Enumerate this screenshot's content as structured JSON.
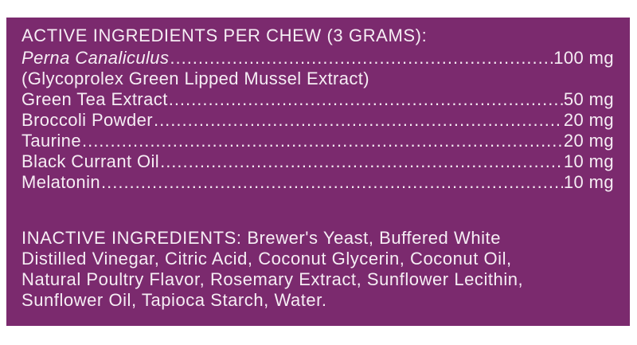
{
  "active": {
    "title": "ACTIVE INGREDIENTS PER CHEW (3 GRAMS):",
    "items": [
      {
        "name": "Perna Canaliculus",
        "amount": "100 mg",
        "note": "(Glycoprolex Green Lipped Mussel Extract)"
      },
      {
        "name": "Green Tea Extract",
        "amount": "50 mg"
      },
      {
        "name": "Broccoli Powder",
        "amount": "20 mg"
      },
      {
        "name": "Taurine",
        "amount": "20 mg"
      },
      {
        "name": "Black Currant Oil",
        "amount": "10 mg"
      },
      {
        "name": "Melatonin",
        "amount": "10 mg"
      }
    ]
  },
  "inactive": {
    "title": "INACTIVE INGREDIENTS:",
    "lines": [
      "Brewer's Yeast, Buffered White",
      "Distilled Vinegar, Citric Acid, Coconut Glycerin, Coconut Oil,",
      "Natural Poultry Flavor, Rosemary Extract, Sunflower Lecithin,",
      "Sunflower Oil, Tapioca Starch, Water."
    ]
  },
  "colors": {
    "panel": "#7b2a6e",
    "text": "#f6edf4"
  }
}
